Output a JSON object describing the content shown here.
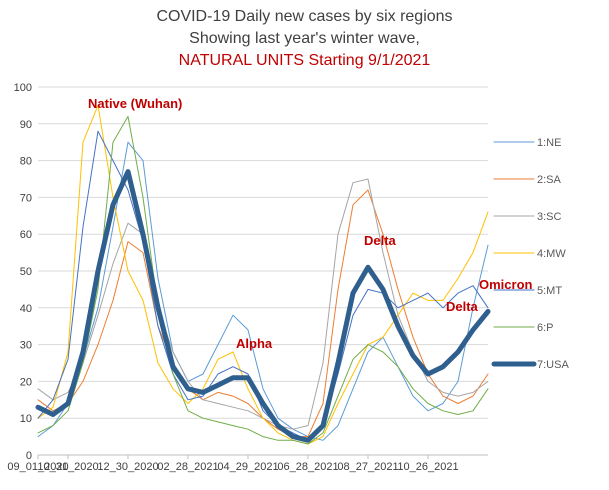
{
  "chart_data": {
    "type": "line",
    "title": "COVID-19 Daily new cases by six regions",
    "subtitle": "Showing last year's winter wave,",
    "subtitle2": "NATURAL UNITS Starting 9/1/2021",
    "xlabel": "",
    "ylabel": "",
    "ylim": [
      0,
      100
    ],
    "yticks": [
      0,
      10,
      20,
      30,
      40,
      50,
      60,
      70,
      80,
      90,
      100
    ],
    "x_tick_labels": [
      "09_01_2020",
      "10_31_2020",
      "12_30_2020",
      "02_28_2021",
      "04_29_2021",
      "06_28_2021",
      "08_27_2021",
      "10_26_2021"
    ],
    "x": [
      "09_01_2020",
      "10_01_2020",
      "10_31_2020",
      "11_15_2020",
      "11_30_2020",
      "12_15_2020",
      "12_30_2020",
      "01_14_2021",
      "01_29_2021",
      "02_13_2021",
      "02_28_2021",
      "03_15_2021",
      "03_30_2021",
      "04_14_2021",
      "04_29_2021",
      "05_14_2021",
      "05_29_2021",
      "06_13_2021",
      "06_28_2021",
      "07_13_2021",
      "07_28_2021",
      "08_12_2021",
      "08_27_2021",
      "09_11_2021",
      "09_26_2021",
      "10_11_2021",
      "10_26_2021",
      "11_10_2021",
      "11_25_2021",
      "12_10_2021",
      "12_25_2021"
    ],
    "grid": "horizontal",
    "legend_position": "right",
    "series": [
      {
        "name": "1:NE",
        "color": "#5b9bd5",
        "width": 1,
        "values": [
          5,
          8,
          14,
          26,
          40,
          62,
          85,
          80,
          48,
          28,
          20,
          22,
          30,
          38,
          34,
          18,
          10,
          7,
          5,
          4,
          8,
          18,
          28,
          32,
          24,
          16,
          12,
          14,
          20,
          40,
          57
        ]
      },
      {
        "name": "2:SA",
        "color": "#ed7d31",
        "width": 1,
        "values": [
          15,
          12,
          14,
          20,
          30,
          42,
          58,
          55,
          35,
          25,
          18,
          15,
          17,
          16,
          14,
          10,
          7,
          5,
          5,
          14,
          45,
          68,
          72,
          60,
          45,
          32,
          22,
          16,
          14,
          16,
          22
        ]
      },
      {
        "name": "3:SC",
        "color": "#a5a5a5",
        "width": 1,
        "values": [
          18,
          15,
          17,
          25,
          38,
          52,
          63,
          60,
          40,
          28,
          20,
          15,
          14,
          13,
          12,
          10,
          8,
          7,
          8,
          25,
          60,
          74,
          75,
          55,
          38,
          28,
          20,
          17,
          16,
          17,
          20
        ]
      },
      {
        "name": "4:MW",
        "color": "#ffc000",
        "width": 1,
        "values": [
          10,
          13,
          28,
          85,
          95,
          70,
          50,
          42,
          25,
          18,
          14,
          18,
          26,
          28,
          18,
          10,
          6,
          4,
          3,
          5,
          14,
          22,
          30,
          32,
          38,
          44,
          42,
          42,
          48,
          55,
          66
        ]
      },
      {
        "name": "5:MT",
        "color": "#4472c4",
        "width": 1,
        "values": [
          10,
          15,
          26,
          62,
          88,
          80,
          72,
          58,
          35,
          22,
          15,
          16,
          22,
          24,
          22,
          12,
          8,
          6,
          4,
          8,
          22,
          38,
          45,
          44,
          40,
          42,
          44,
          40,
          44,
          46,
          40
        ]
      },
      {
        "name": "6:P",
        "color": "#70ad47",
        "width": 1,
        "values": [
          6,
          8,
          12,
          25,
          45,
          85,
          92,
          70,
          40,
          22,
          12,
          10,
          9,
          8,
          7,
          5,
          4,
          4,
          3,
          6,
          16,
          26,
          30,
          28,
          24,
          18,
          14,
          12,
          11,
          12,
          18
        ]
      },
      {
        "name": "7:USA",
        "color": "#2e5f8e",
        "width": 5,
        "values": [
          13,
          11,
          14,
          28,
          50,
          68,
          77,
          60,
          40,
          24,
          18,
          17,
          19,
          21,
          21,
          14,
          8,
          5,
          4,
          8,
          25,
          44,
          51,
          45,
          35,
          27,
          22,
          24,
          28,
          34,
          39
        ]
      }
    ],
    "annotations": [
      {
        "text": "Native (Wuhan)",
        "color": "#c00000"
      },
      {
        "text": "Alpha",
        "color": "#c00000"
      },
      {
        "text": "Delta",
        "color": "#c00000"
      },
      {
        "text": "Delta",
        "color": "#c00000"
      },
      {
        "text": "Omicron",
        "color": "#c00000"
      }
    ]
  }
}
